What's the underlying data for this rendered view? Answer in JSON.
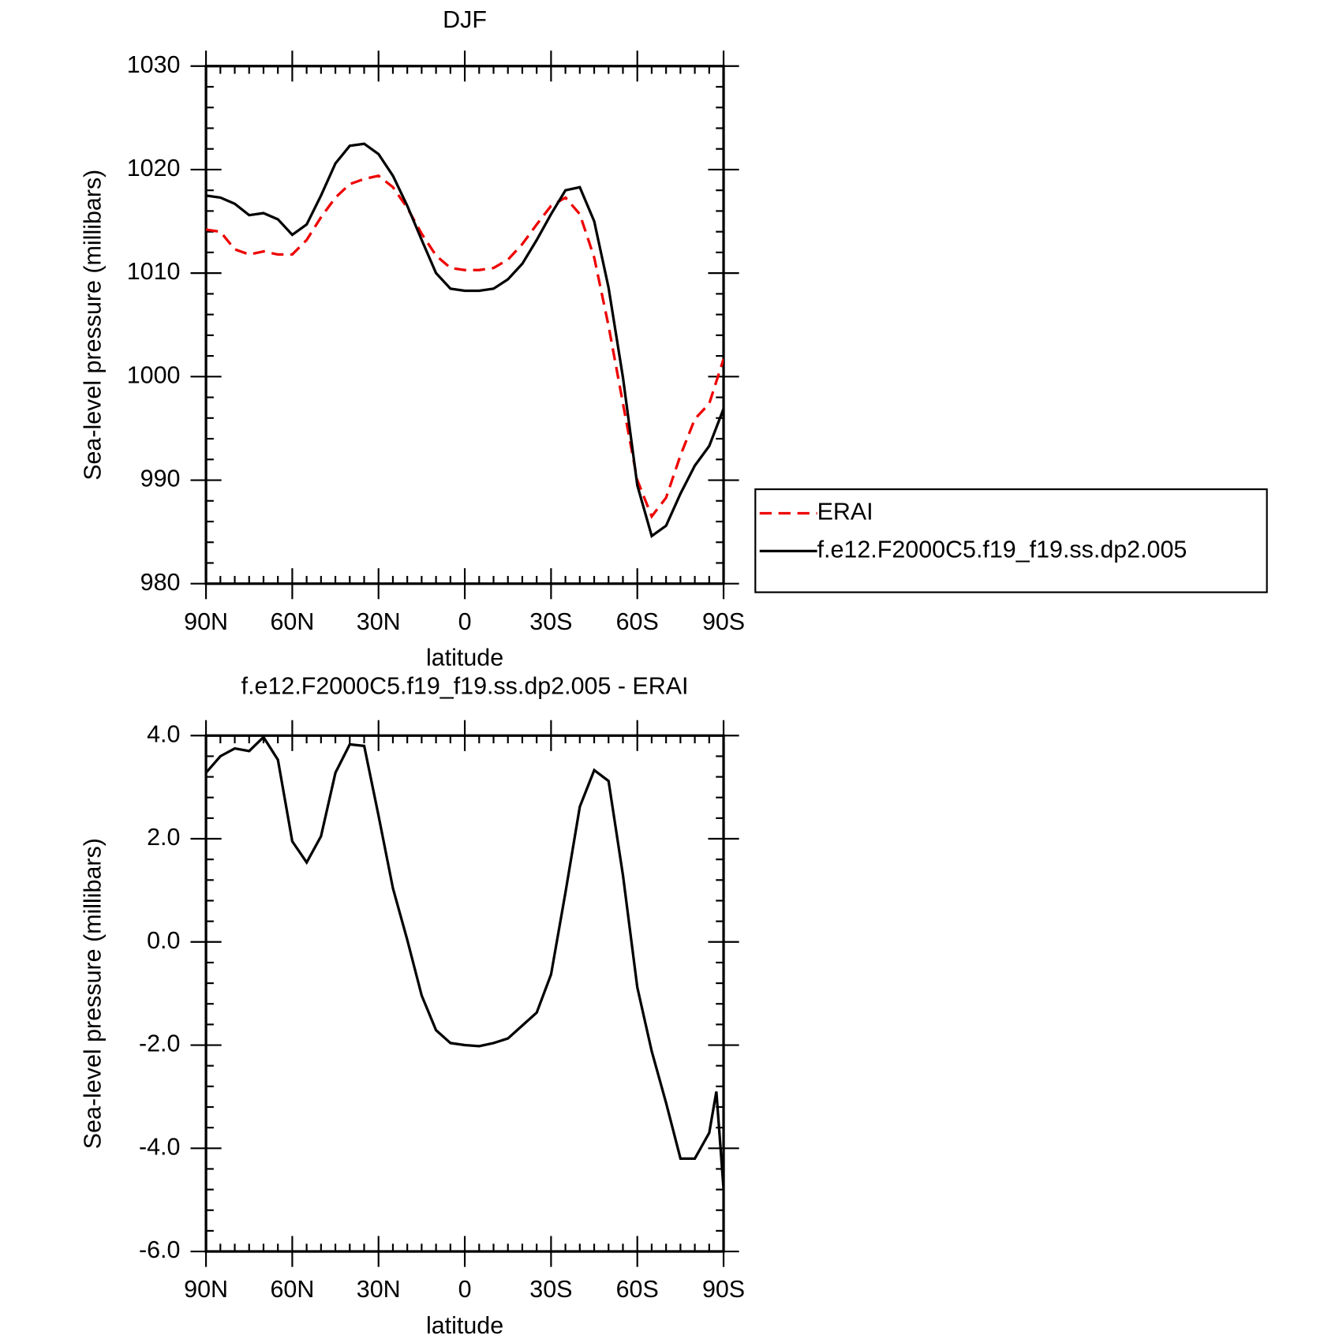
{
  "chart_data": [
    {
      "type": "line",
      "title": "DJF",
      "xlabel": "latitude",
      "ylabel": "Sea-level pressure (millibars)",
      "x": [
        90,
        85,
        80,
        75,
        70,
        65,
        60,
        55,
        50,
        45,
        40,
        35,
        30,
        25,
        20,
        15,
        10,
        5,
        0,
        -5,
        -10,
        -15,
        -20,
        -25,
        -30,
        -35,
        -40,
        -45,
        -50,
        -55,
        -60,
        -65,
        -70,
        -75,
        -80,
        -85,
        -90
      ],
      "series": [
        {
          "name": "ERAI",
          "color": "#ee0000",
          "linestyle": "dashed",
          "values": [
            1014.2,
            1014.0,
            1012.3,
            1011.8,
            1012.1,
            1011.8,
            1011.8,
            1013.2,
            1015.4,
            1017.3,
            1018.6,
            1019.1,
            1019.4,
            1018.3,
            1016.3,
            1013.8,
            1011.7,
            1010.5,
            1010.3,
            1010.3,
            1010.5,
            1011.3,
            1012.8,
            1014.7,
            1016.5,
            1017.3,
            1015.7,
            1011.5,
            1004.9,
            997.4,
            990.0,
            986.5,
            988.3,
            992.4,
            995.9,
            997.4,
            1001.7
          ]
        },
        {
          "name": "f.e12.F2000C5.f19_f19.ss.dp2.005",
          "color": "#000000",
          "linestyle": "solid",
          "values": [
            1017.5,
            1017.3,
            1016.7,
            1015.6,
            1015.8,
            1015.2,
            1013.7,
            1014.7,
            1017.5,
            1020.6,
            1022.3,
            1022.5,
            1021.5,
            1019.4,
            1016.5,
            1013.2,
            1010.0,
            1008.5,
            1008.3,
            1008.3,
            1008.5,
            1009.4,
            1010.9,
            1013.2,
            1015.7,
            1018.0,
            1018.3,
            1015.0,
            1008.6,
            999.9,
            989.5,
            984.6,
            985.6,
            988.7,
            991.4,
            993.3,
            996.9
          ]
        }
      ],
      "xlim": [
        90,
        -90
      ],
      "xticks": [
        {
          "value": 90,
          "label": "90N"
        },
        {
          "value": 60,
          "label": "60N"
        },
        {
          "value": 30,
          "label": "30N"
        },
        0,
        {
          "value": -30,
          "label": "30S"
        },
        {
          "value": -60,
          "label": "60S"
        },
        {
          "value": -90,
          "label": "90S"
        }
      ],
      "ylim": [
        980,
        1030
      ],
      "yticks": [
        980,
        990,
        1000,
        1010,
        1020,
        1030
      ],
      "legend": "outside-right"
    },
    {
      "type": "line",
      "title": "f.e12.F2000C5.f19_f19.ss.dp2.005 - ERAI",
      "xlabel": "latitude",
      "ylabel": "Sea-level pressure (millibars)",
      "x": [
        90,
        85,
        80,
        75,
        70,
        65,
        60,
        55,
        50,
        45,
        40,
        35,
        30,
        25,
        20,
        15,
        10,
        5,
        0,
        -5,
        -10,
        -15,
        -20,
        -25,
        -30,
        -35,
        -40,
        -45,
        -50,
        -55,
        -60,
        -65,
        -70,
        -75,
        -80,
        -85,
        -87.5,
        -90
      ],
      "values": [
        3.28,
        3.6,
        3.75,
        3.7,
        3.97,
        3.53,
        1.95,
        1.54,
        2.05,
        3.28,
        3.83,
        3.8,
        2.45,
        1.04,
        0.04,
        -1.04,
        -1.71,
        -1.96,
        -2.0,
        -2.02,
        -1.96,
        -1.87,
        -1.62,
        -1.37,
        -0.63,
        0.96,
        2.62,
        3.33,
        3.12,
        1.29,
        -0.88,
        -2.12,
        -3.12,
        -4.2,
        -4.2,
        -3.7,
        -2.9,
        -4.79
      ],
      "color": "#000000",
      "xlim": [
        90,
        -90
      ],
      "xticks": [
        {
          "value": 90,
          "label": "90N"
        },
        {
          "value": 60,
          "label": "60N"
        },
        {
          "value": 30,
          "label": "30N"
        },
        0,
        {
          "value": -30,
          "label": "30S"
        },
        {
          "value": -60,
          "label": "60S"
        },
        {
          "value": -90,
          "label": "90S"
        }
      ],
      "ylim": [
        -6,
        4
      ],
      "yticks": [
        {
          "value": -6,
          "label": "-6.0"
        },
        {
          "value": -4,
          "label": "-4.0"
        },
        {
          "value": -2,
          "label": "-2.0"
        },
        {
          "value": 0,
          "label": "0.0"
        },
        {
          "value": 2,
          "label": "2.0"
        },
        {
          "value": 4,
          "label": "4.0"
        }
      ]
    }
  ]
}
